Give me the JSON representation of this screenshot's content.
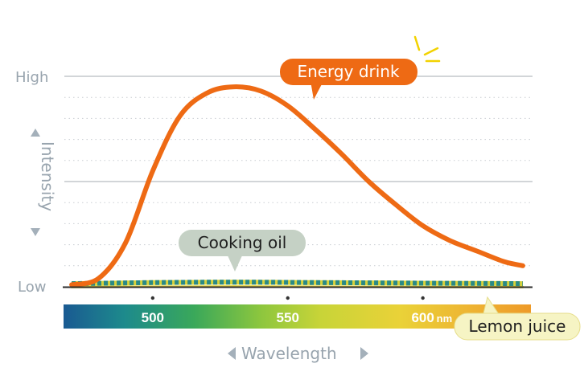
{
  "chart_data": {
    "type": "line",
    "xlabel": "Wavelength",
    "ylabel": "Intensity",
    "y_tick_labels": [
      "Low",
      "High"
    ],
    "x_ticks": [
      500,
      550,
      600
    ],
    "x_unit": "nm",
    "xlim": [
      467,
      640
    ],
    "ylim": [
      "Low",
      "High"
    ],
    "grid": "horizontal",
    "series": [
      {
        "name": "Energy drink",
        "color": "#ee6a14",
        "x": [
          470,
          480,
          490,
          500,
          510,
          520,
          530,
          540,
          550,
          560,
          570,
          580,
          590,
          600,
          610,
          620,
          630,
          637
        ],
        "y": [
          0.01,
          0.04,
          0.21,
          0.55,
          0.81,
          0.92,
          0.95,
          0.93,
          0.86,
          0.75,
          0.63,
          0.5,
          0.39,
          0.29,
          0.22,
          0.17,
          0.12,
          0.1
        ]
      },
      {
        "name": "Cooking oil",
        "color": "#2a8a86",
        "x": [
          470,
          500,
          530,
          560,
          590,
          620,
          637
        ],
        "y": [
          0.015,
          0.02,
          0.022,
          0.02,
          0.018,
          0.016,
          0.015
        ]
      },
      {
        "name": "Lemon juice",
        "color": "#e8d43a",
        "x": [
          470,
          500,
          530,
          560,
          590,
          620,
          637
        ],
        "y": [
          0.01,
          0.012,
          0.013,
          0.012,
          0.011,
          0.01,
          0.01
        ]
      }
    ]
  },
  "colors": {
    "energy": "#ee6a14",
    "oil": "#2a8a86",
    "lemon": "#e8d43a",
    "axis_text": "#98a4ae",
    "callout_oil_bg": "#c5d1c5",
    "callout_lemon_bg": "#f6f4c4",
    "sparkle": "#f2d200"
  }
}
